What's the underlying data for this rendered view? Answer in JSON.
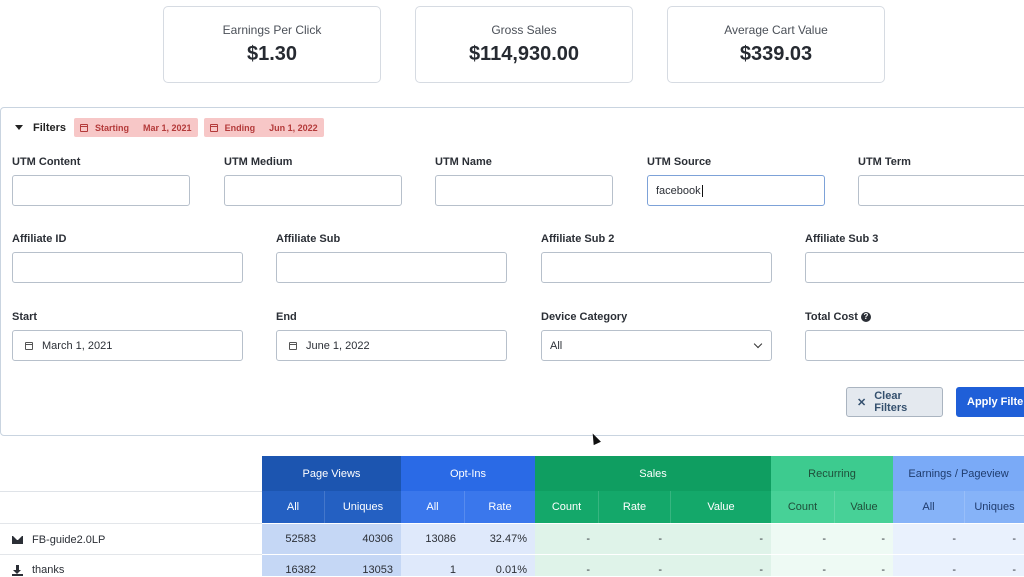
{
  "stats": [
    {
      "label": "Earnings Per Click",
      "value": "$1.30"
    },
    {
      "label": "Gross Sales",
      "value": "$114,930.00"
    },
    {
      "label": "Average Cart Value",
      "value": "$339.03"
    }
  ],
  "filters": {
    "title": "Filters",
    "starting_label": "Starting",
    "starting_value": "Mar 1, 2021",
    "ending_label": "Ending",
    "ending_value": "Jun 1, 2022",
    "utm_content": {
      "label": "UTM Content",
      "value": ""
    },
    "utm_medium": {
      "label": "UTM Medium",
      "value": ""
    },
    "utm_name": {
      "label": "UTM Name",
      "value": ""
    },
    "utm_source": {
      "label": "UTM Source",
      "value": "facebook"
    },
    "utm_term": {
      "label": "UTM Term",
      "value": ""
    },
    "affiliate_id": {
      "label": "Affiliate ID",
      "value": ""
    },
    "affiliate_sub": {
      "label": "Affiliate Sub",
      "value": ""
    },
    "affiliate_sub2": {
      "label": "Affiliate Sub 2",
      "value": ""
    },
    "affiliate_sub3": {
      "label": "Affiliate Sub 3",
      "value": ""
    },
    "start": {
      "label": "Start",
      "value": "March 1, 2021"
    },
    "end": {
      "label": "End",
      "value": "June 1, 2022"
    },
    "device_category": {
      "label": "Device Category",
      "value": "All"
    },
    "total_cost": {
      "label": "Total Cost",
      "value": ""
    },
    "clear_label": "Clear Filters",
    "apply_label": "Apply Filter"
  },
  "table": {
    "groups": [
      {
        "label": "Page Views",
        "bg": "#1c55b0",
        "color": "#ffffff",
        "subs": [
          "All",
          "Uniques"
        ]
      },
      {
        "label": "Opt-Ins",
        "bg": "#2a6ae6",
        "color": "#ffffff",
        "subs": [
          "All",
          "Rate"
        ]
      },
      {
        "label": "Sales",
        "bg": "#0f9e61",
        "color": "#ffffff",
        "subs": [
          "Count",
          "Rate",
          "Value"
        ]
      },
      {
        "label": "Recurring",
        "bg": "#3dcb8f",
        "color": "#1f4e3a",
        "subs": [
          "Count",
          "Value"
        ]
      },
      {
        "label": "Earnings / Pageview",
        "bg": "#7aaaf7",
        "color": "#1f3c6e",
        "subs": [
          "All",
          "Uniques"
        ]
      }
    ],
    "rows": [
      {
        "label": "FB-guide2.0LP",
        "icon": "envelope-icon",
        "values": [
          "52583",
          "40306",
          "13086",
          "32.47%",
          "-",
          "-",
          "-",
          "-",
          "-",
          "-",
          "-"
        ]
      },
      {
        "label": "thanks",
        "icon": "download-icon",
        "values": [
          "16382",
          "13053",
          "1",
          "0.01%",
          "-",
          "-",
          "-",
          "-",
          "-",
          "-",
          "-"
        ]
      }
    ]
  }
}
